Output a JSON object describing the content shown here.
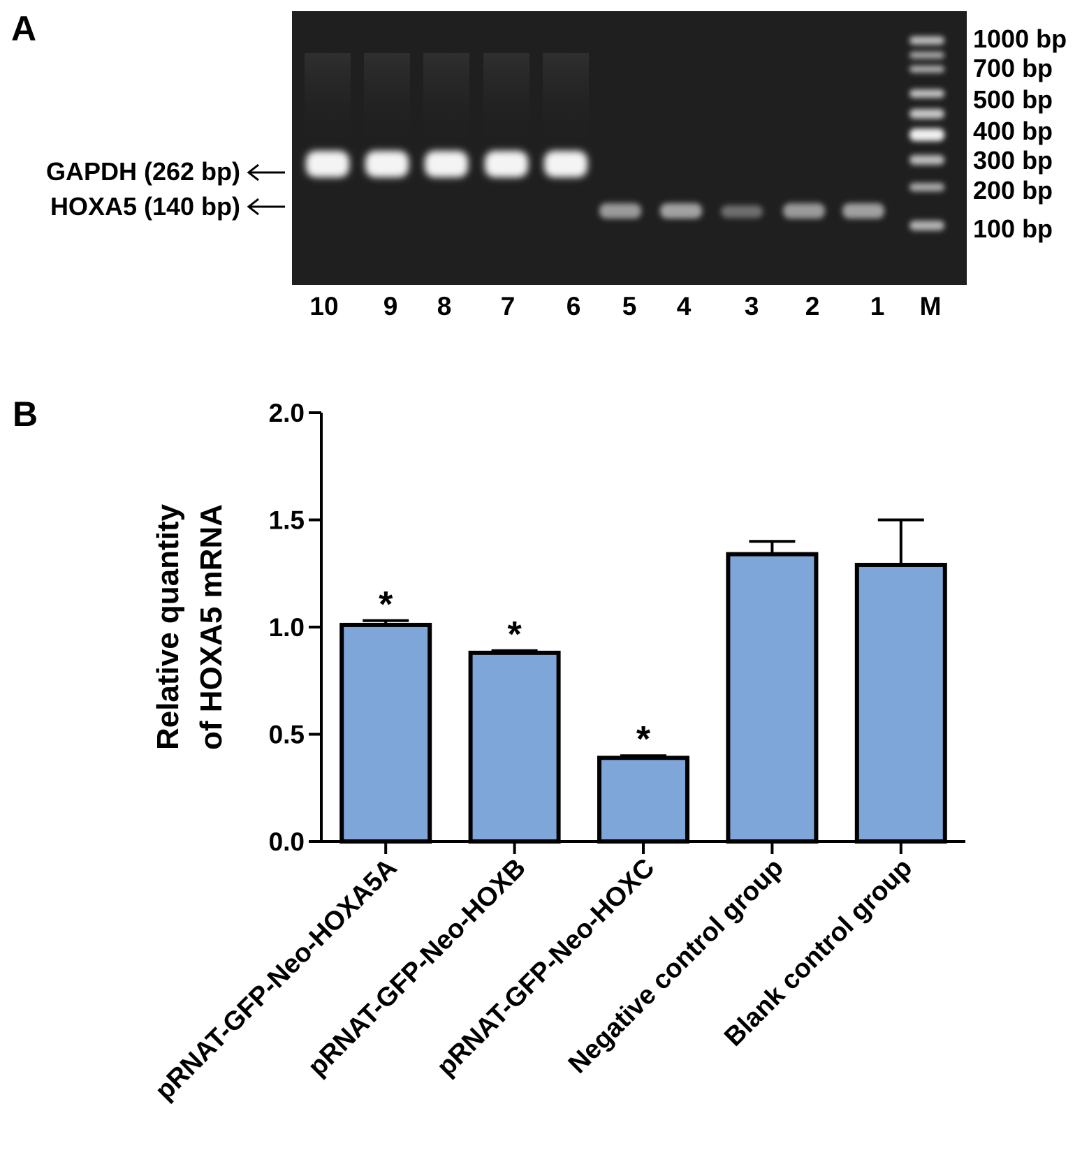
{
  "panels": {
    "a_label": "A",
    "b_label": "B"
  },
  "gel": {
    "lanes": [
      "10",
      "9",
      "8",
      "7",
      "6",
      "5",
      "4",
      "3",
      "2",
      "1",
      "M"
    ],
    "marker_labels": [
      "1000 bp",
      "700 bp",
      "500 bp",
      "400 bp",
      "300 bp",
      "200 bp",
      "100 bp"
    ],
    "bands": {
      "gapdh": "GAPDH (262 bp)",
      "hoxa5": "HOXA5 (140 bp)"
    }
  },
  "chart_data": {
    "type": "bar",
    "title": "",
    "ylabel_line1": "Relative quantity",
    "ylabel_line2": "of  HOXA5 mRNA",
    "xlabel": "",
    "ylim": [
      0.0,
      2.0
    ],
    "yticks": [
      0.0,
      0.5,
      1.0,
      1.5,
      2.0
    ],
    "ytick_labels": [
      "0.0",
      "0.5",
      "1.0",
      "1.5",
      "2.0"
    ],
    "categories": [
      "pRNAT-GFP-Neo-HOXA5A",
      "pRNAT-GFP-Neo-HOXB",
      "pRNAT-GFP-Neo-HOXC",
      "Negative control group",
      "Blank control group"
    ],
    "values": [
      1.01,
      0.88,
      0.39,
      1.34,
      1.29
    ],
    "errors": [
      0.02,
      0.01,
      0.01,
      0.06,
      0.21
    ],
    "significance": [
      "*",
      "*",
      "*",
      "",
      ""
    ],
    "bar_color": "#7ea6d8",
    "edge_color": "#000000",
    "grid": false
  }
}
